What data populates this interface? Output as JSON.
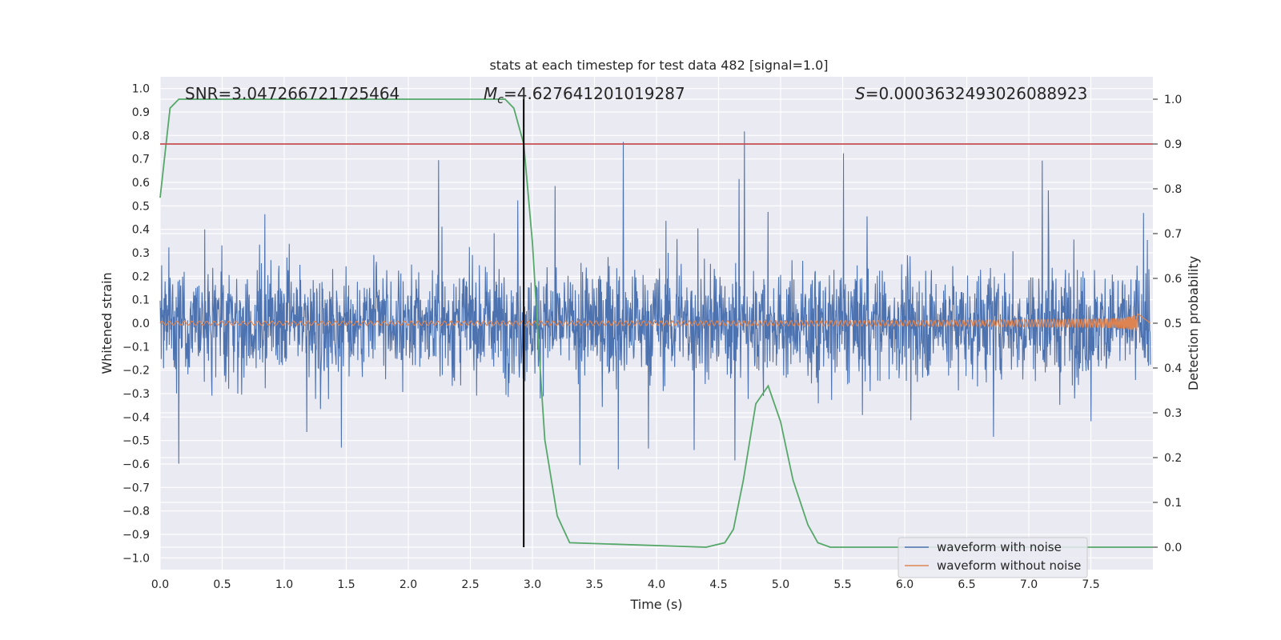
{
  "chart_data": {
    "type": "line",
    "title": "stats at each timestep for test data 482 [signal=1.0]",
    "xlabel": "Time (s)",
    "ylabel_left": "Whitened strain",
    "ylabel_right": "Detection probability",
    "xlim": [
      0.0,
      8.0
    ],
    "ylim_left": [
      -1.05,
      1.05
    ],
    "ylim_right": [
      -0.05,
      1.05
    ],
    "x_ticks": [
      "0.0",
      "0.5",
      "1.0",
      "1.5",
      "2.0",
      "2.5",
      "3.0",
      "3.5",
      "4.0",
      "4.5",
      "5.0",
      "5.5",
      "6.0",
      "6.5",
      "7.0",
      "7.5"
    ],
    "y_left_ticks": [
      "1.0",
      "0.9",
      "0.8",
      "0.7",
      "0.6",
      "0.5",
      "0.4",
      "0.3",
      "0.2",
      "0.1",
      "0.0",
      "−0.1",
      "−0.2",
      "−0.3",
      "−0.4",
      "−0.5",
      "−0.6",
      "−0.7",
      "−0.8",
      "−0.9",
      "−1.0"
    ],
    "y_right_ticks": [
      "1.0",
      "0.9",
      "0.8",
      "0.7",
      "0.6",
      "0.5",
      "0.4",
      "0.3",
      "0.2",
      "0.1",
      "0.0"
    ],
    "annotations": {
      "snr": "SNR=3.047266721725464",
      "mc_symbol": "M",
      "mc_subscript": "c",
      "mc_value": "=4.627641201019287",
      "s_symbol": "S",
      "s_value": "=0.0003632493026088923"
    },
    "threshold_line": {
      "y_right": 0.9,
      "color": "#c44e52"
    },
    "vertical_marker": {
      "x": 2.93,
      "color": "#000000"
    },
    "series": [
      {
        "name": "waveform with noise",
        "color": "#4c72b0",
        "axis": "left",
        "style": "dense noise, amplitude about 0.5, peaks near 1.0"
      },
      {
        "name": "waveform without noise",
        "color": "#dd8452",
        "axis": "left",
        "style": "chirp growing to about 0.08 amplitude, ends at 7.88 s"
      },
      {
        "name": "detection probability",
        "color": "#55a868",
        "axis": "right",
        "x": [
          0.0,
          0.08,
          0.15,
          0.3,
          1.0,
          2.0,
          2.6,
          2.78,
          2.85,
          2.93,
          3.0,
          3.05,
          3.1,
          3.2,
          3.3,
          4.4,
          4.55,
          4.62,
          4.7,
          4.8,
          4.9,
          5.0,
          5.1,
          5.22,
          5.3,
          5.4,
          5.6,
          8.0
        ],
        "values": [
          0.78,
          0.98,
          1.0,
          1.0,
          1.0,
          1.0,
          1.0,
          1.0,
          0.98,
          0.9,
          0.68,
          0.45,
          0.24,
          0.07,
          0.01,
          0.0,
          0.01,
          0.04,
          0.15,
          0.32,
          0.36,
          0.28,
          0.15,
          0.05,
          0.01,
          0.0,
          0.0,
          0.0
        ]
      }
    ],
    "legend": {
      "location": "lower-right",
      "entries": [
        {
          "label": "waveform with noise",
          "color": "#4c72b0"
        },
        {
          "label": "waveform without noise",
          "color": "#dd8452"
        }
      ]
    },
    "grid": true
  }
}
